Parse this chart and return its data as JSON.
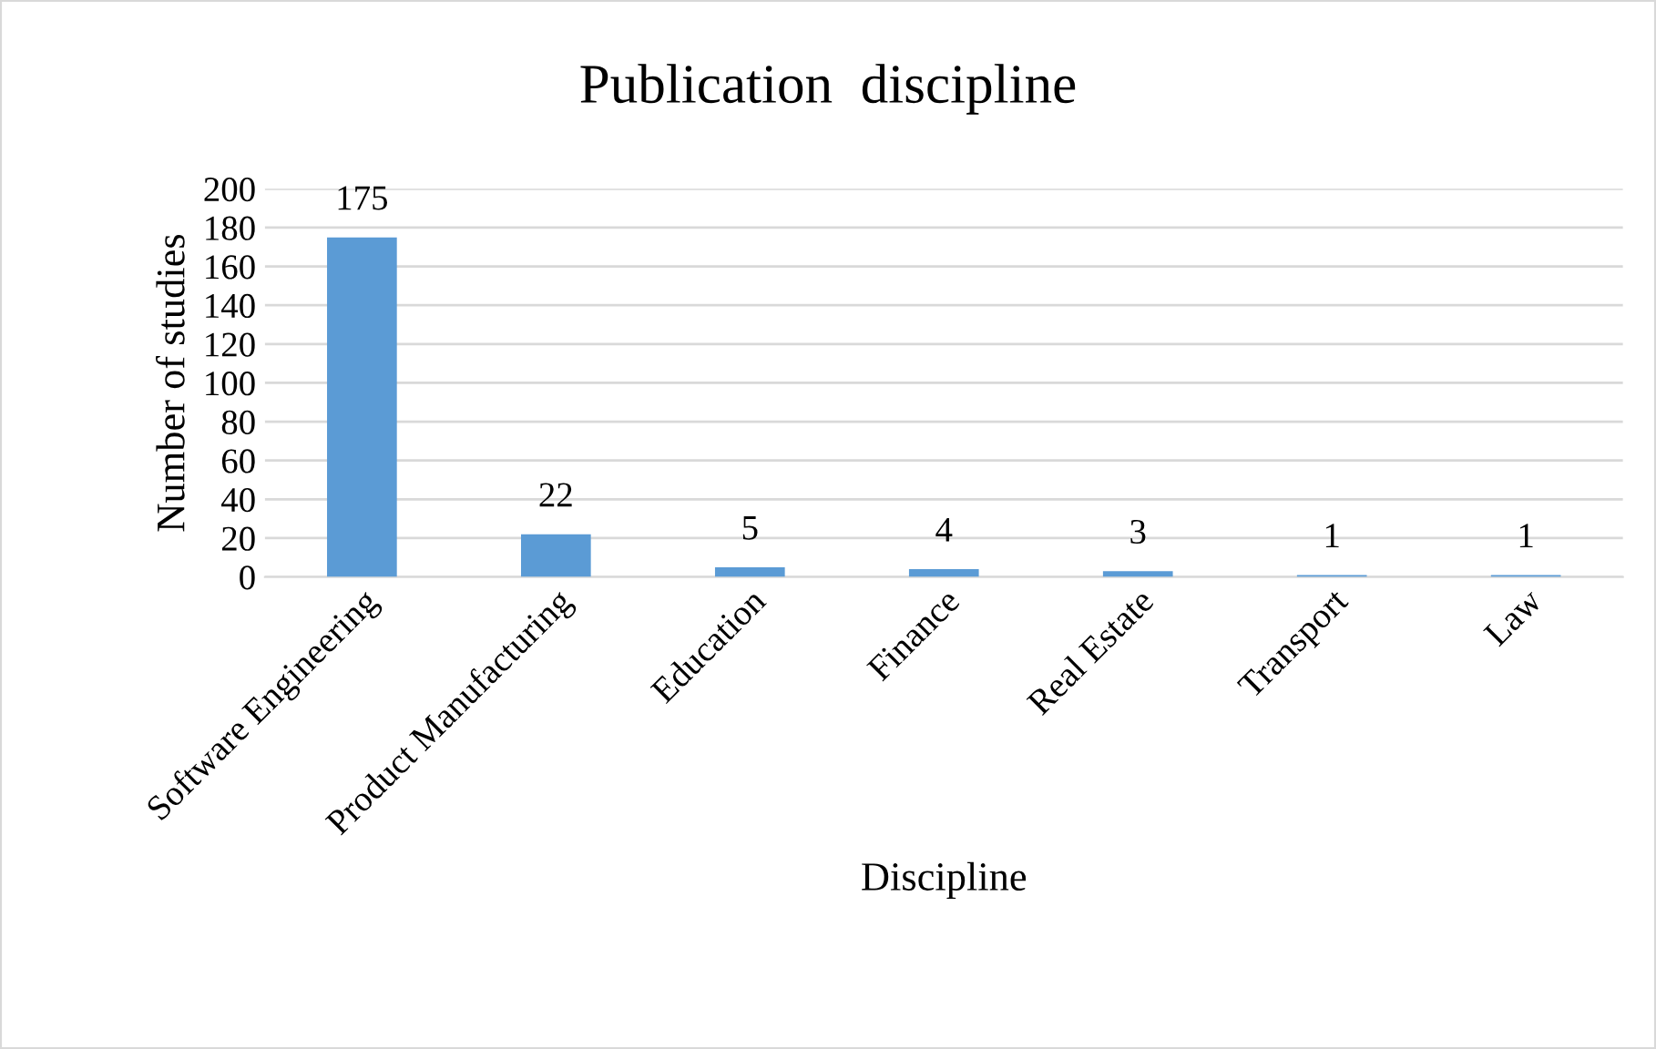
{
  "chart_data": {
    "type": "bar",
    "title": "Publication  discipline",
    "xlabel": "Discipline",
    "ylabel": "Number of studies",
    "categories": [
      "Software Engineering",
      "Product Manufacturing",
      "Education",
      "Finance",
      "Real Estate",
      "Transport",
      "Law"
    ],
    "values": [
      175,
      22,
      5,
      4,
      3,
      1,
      1
    ],
    "color": "#5b9bd5",
    "ylim": [
      0,
      200
    ],
    "yticks": [
      0,
      20,
      40,
      60,
      80,
      100,
      120,
      140,
      160,
      180,
      200
    ],
    "grid": "y",
    "data_labels": true
  }
}
